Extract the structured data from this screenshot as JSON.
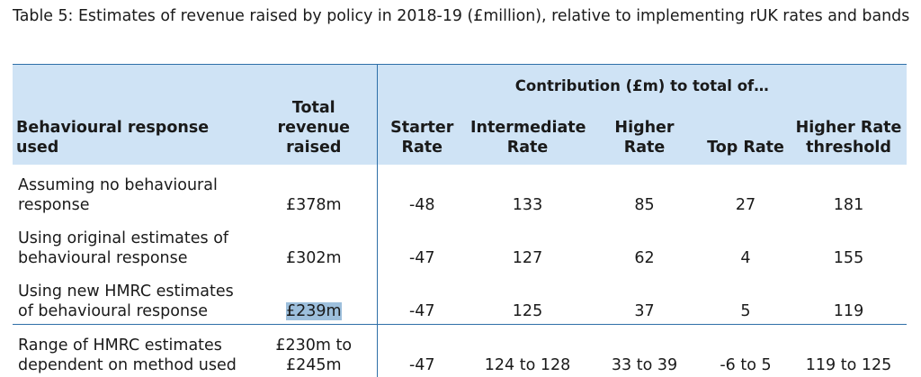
{
  "caption": "Table 5: Estimates of revenue raised by policy in 2018-19 (£million), relative to implementing rUK rates and bands",
  "table": {
    "group_header": "Contribution (£m) to total of…",
    "headers": [
      "Behavioural response used",
      "Total revenue raised",
      "Starter Rate",
      "Intermediate Rate",
      "Higher Rate",
      "Top Rate",
      "Higher Rate threshold"
    ],
    "rows": [
      [
        "Assuming no behavioural response",
        "£378m",
        "-48",
        "133",
        "85",
        "27",
        "181"
      ],
      [
        "Using original estimates of behavioural response",
        "£302m",
        "-47",
        "127",
        "62",
        "4",
        "155"
      ],
      [
        "Using new HMRC estimates of behavioural response",
        "£239m",
        "-47",
        "125",
        "37",
        "5",
        "119"
      ],
      [
        "Range of HMRC estimates dependent on method used",
        "£230m to £245m",
        "-47",
        "124 to 128",
        "33 to 39",
        "-6 to 5",
        "119 to 125"
      ]
    ]
  },
  "colors": {
    "header_bg": "#cfe3f5",
    "rule": "#2f6fa8",
    "highlight": "#9dbfdc"
  }
}
